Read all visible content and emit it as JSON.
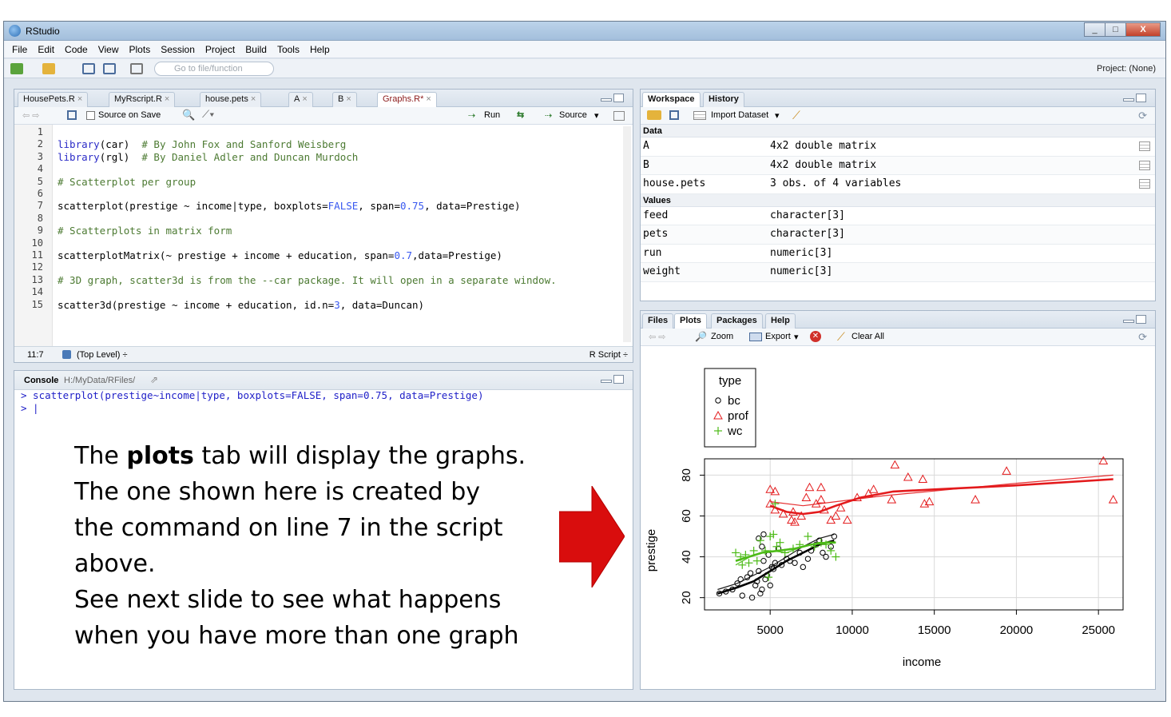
{
  "window": {
    "title": "RStudio",
    "min": "_",
    "max": "□",
    "close": "X"
  },
  "menu": [
    "File",
    "Edit",
    "Code",
    "View",
    "Plots",
    "Session",
    "Project",
    "Build",
    "Tools",
    "Help"
  ],
  "toolbar": {
    "goto_placeholder": "Go to file/function",
    "project_label": "Project: (None)"
  },
  "editor": {
    "tabs": [
      {
        "label": "HousePets.R",
        "active": false
      },
      {
        "label": "MyRscript.R",
        "active": false
      },
      {
        "label": "house.pets",
        "active": false
      },
      {
        "label": "A",
        "active": false
      },
      {
        "label": "B",
        "active": false
      },
      {
        "label": "Graphs.R*",
        "active": true
      }
    ],
    "source_on_save": "Source on Save",
    "run_label": "Run",
    "source_label": "Source",
    "line_numbers": [
      "1",
      "2",
      "3",
      "4",
      "5",
      "6",
      "7",
      "8",
      "9",
      "10",
      "11",
      "12",
      "13",
      "14",
      "15"
    ],
    "lines": [
      "",
      "library(car)  # By John Fox and Sanford Weisberg",
      "library(rgl)  # By Daniel Adler and Duncan Murdoch",
      "",
      "# Scatterplot per group",
      "",
      "scatterplot(prestige ~ income|type, boxplots=FALSE, span=0.75, data=Prestige)",
      "",
      "# Scatterplots in matrix form",
      "",
      "scatterplotMatrix(~ prestige + income + education, span=0.7,data=Prestige)",
      "",
      "# 3D graph, scatter3d is from the --car package. It will open in a separate window.",
      "",
      "scatter3d(prestige ~ income + education, id.n=3, data=Duncan)"
    ],
    "cursor_pos": "11:7",
    "scope": "(Top Level) ÷",
    "file_type": "R Script ÷"
  },
  "console": {
    "title": "Console",
    "path": "H:/MyData/RFiles/",
    "lines": [
      "> scatterplot(prestige~income|type, boxplots=FALSE, span=0.75, data=Prestige)",
      "> |"
    ]
  },
  "workspace": {
    "tabs": [
      "Workspace",
      "History"
    ],
    "import_label": "Import Dataset",
    "data_header": "Data",
    "data_rows": [
      {
        "name": "A",
        "value": "4x2 double matrix"
      },
      {
        "name": "B",
        "value": "4x2 double matrix"
      },
      {
        "name": "house.pets",
        "value": "3 obs. of 4 variables"
      }
    ],
    "values_header": "Values",
    "value_rows": [
      {
        "name": "feed",
        "value": "character[3]"
      },
      {
        "name": "pets",
        "value": "character[3]"
      },
      {
        "name": "run",
        "value": "numeric[3]"
      },
      {
        "name": "weight",
        "value": "numeric[3]"
      }
    ]
  },
  "plots_pane": {
    "tabs": [
      "Files",
      "Plots",
      "Packages",
      "Help"
    ],
    "zoom_label": "Zoom",
    "export_label": "Export",
    "clear_label": "Clear All"
  },
  "slide": {
    "line1_pre": "The ",
    "line1_bold": "plots",
    "line1_post": " tab will display the graphs.",
    "line2": "The one shown here is created by",
    "line3": "the command on line 7 in the script",
    "line4": "above.",
    "line5": "See next slide to see what happens",
    "line6": "when you have more than one graph"
  },
  "colors": {
    "arrow": "#d90d0d",
    "bc": "#000000",
    "prof": "#e31a1c",
    "wc": "#4cbb17"
  },
  "chart_data": {
    "type": "scatter",
    "xlabel": "income",
    "ylabel": "prestige",
    "xlim": [
      1000,
      26500
    ],
    "ylim": [
      14,
      88
    ],
    "x_ticks": [
      5000,
      10000,
      15000,
      20000,
      25000
    ],
    "y_ticks": [
      20,
      40,
      60,
      80
    ],
    "grid": true,
    "legend": {
      "title": "type",
      "position": "top-left",
      "entries": [
        "bc",
        "prof",
        "wc"
      ]
    },
    "series": [
      {
        "name": "bc",
        "marker": "circle",
        "points": [
          [
            1900,
            22
          ],
          [
            2300,
            23
          ],
          [
            2700,
            24
          ],
          [
            3000,
            27
          ],
          [
            3200,
            29
          ],
          [
            3300,
            21
          ],
          [
            3600,
            30
          ],
          [
            3800,
            32
          ],
          [
            3900,
            20
          ],
          [
            4100,
            26
          ],
          [
            4200,
            28
          ],
          [
            4300,
            33
          ],
          [
            4400,
            22
          ],
          [
            4500,
            24
          ],
          [
            4600,
            38
          ],
          [
            4700,
            29
          ],
          [
            4800,
            31
          ],
          [
            4900,
            41
          ],
          [
            5000,
            26
          ],
          [
            5100,
            35
          ],
          [
            5300,
            37
          ],
          [
            5500,
            44
          ],
          [
            5700,
            36
          ],
          [
            6000,
            39
          ],
          [
            6200,
            38
          ],
          [
            6500,
            37
          ],
          [
            6800,
            42
          ],
          [
            7000,
            35
          ],
          [
            7300,
            39
          ],
          [
            7500,
            43
          ],
          [
            7800,
            46
          ],
          [
            8000,
            48
          ],
          [
            8200,
            42
          ],
          [
            8400,
            40
          ],
          [
            8700,
            45
          ],
          [
            8900,
            50
          ],
          [
            4300,
            49
          ],
          [
            4600,
            51
          ],
          [
            4500,
            45
          ],
          [
            5200,
            34
          ]
        ],
        "fit_main": [
          [
            1800,
            22
          ],
          [
            3000,
            25
          ],
          [
            4000,
            28
          ],
          [
            5000,
            33
          ],
          [
            6000,
            38
          ],
          [
            7000,
            42
          ],
          [
            8000,
            46
          ],
          [
            8900,
            48
          ]
        ],
        "fit_band": [
          [
            1800,
            24
          ],
          [
            3000,
            27
          ],
          [
            4000,
            31
          ],
          [
            5000,
            35
          ],
          [
            6000,
            40
          ],
          [
            7000,
            45
          ],
          [
            8000,
            49
          ],
          [
            8900,
            51
          ]
        ]
      },
      {
        "name": "prof",
        "marker": "triangle",
        "points": [
          [
            5000,
            66
          ],
          [
            5300,
            63
          ],
          [
            5800,
            61
          ],
          [
            6300,
            58
          ],
          [
            6500,
            57
          ],
          [
            6900,
            60
          ],
          [
            7200,
            69
          ],
          [
            7800,
            66
          ],
          [
            8100,
            74
          ],
          [
            8300,
            63
          ],
          [
            8700,
            58
          ],
          [
            9000,
            60
          ],
          [
            9300,
            64
          ],
          [
            9700,
            58
          ],
          [
            10300,
            69
          ],
          [
            11000,
            71
          ],
          [
            11300,
            73
          ],
          [
            12400,
            68
          ],
          [
            12600,
            85
          ],
          [
            13400,
            79
          ],
          [
            14300,
            78
          ],
          [
            14400,
            66
          ],
          [
            14700,
            67
          ],
          [
            17500,
            68
          ],
          [
            19400,
            82
          ],
          [
            25300,
            87
          ],
          [
            25900,
            68
          ],
          [
            5000,
            73
          ],
          [
            5300,
            72
          ],
          [
            7400,
            74
          ],
          [
            6400,
            62
          ],
          [
            8100,
            68
          ]
        ],
        "fit_main": [
          [
            5000,
            65
          ],
          [
            6000,
            62
          ],
          [
            7000,
            61
          ],
          [
            8000,
            62
          ],
          [
            9000,
            65
          ],
          [
            10500,
            69
          ],
          [
            12500,
            72
          ],
          [
            15000,
            73
          ],
          [
            20000,
            75
          ],
          [
            25900,
            78
          ]
        ],
        "fit_band": [
          [
            5000,
            67
          ],
          [
            7000,
            65
          ],
          [
            9000,
            67
          ],
          [
            12000,
            70
          ],
          [
            16000,
            73
          ],
          [
            20000,
            76
          ],
          [
            25900,
            80
          ]
        ]
      },
      {
        "name": "wc",
        "marker": "plus",
        "points": [
          [
            2900,
            42
          ],
          [
            3200,
            40
          ],
          [
            3300,
            36
          ],
          [
            3500,
            41
          ],
          [
            3700,
            37
          ],
          [
            4000,
            43
          ],
          [
            4200,
            38
          ],
          [
            4400,
            48
          ],
          [
            4700,
            43
          ],
          [
            4900,
            30
          ],
          [
            5000,
            50
          ],
          [
            5200,
            51
          ],
          [
            5400,
            45
          ],
          [
            5600,
            47
          ],
          [
            5900,
            42
          ],
          [
            6400,
            44
          ],
          [
            6800,
            46
          ],
          [
            7300,
            50
          ],
          [
            7700,
            45
          ],
          [
            8100,
            47
          ],
          [
            8400,
            46
          ],
          [
            8700,
            43
          ],
          [
            9000,
            40
          ],
          [
            5300,
            66
          ]
        ],
        "fit_main": [
          [
            2900,
            38
          ],
          [
            3700,
            40
          ],
          [
            4500,
            42
          ],
          [
            5500,
            43
          ],
          [
            6500,
            44
          ],
          [
            7500,
            46
          ],
          [
            8500,
            47
          ],
          [
            9000,
            47
          ]
        ],
        "fit_band": [
          [
            2900,
            36
          ],
          [
            4000,
            41
          ],
          [
            5000,
            43
          ],
          [
            6000,
            42
          ],
          [
            7000,
            45
          ],
          [
            8000,
            47
          ],
          [
            9000,
            47
          ]
        ]
      }
    ]
  }
}
